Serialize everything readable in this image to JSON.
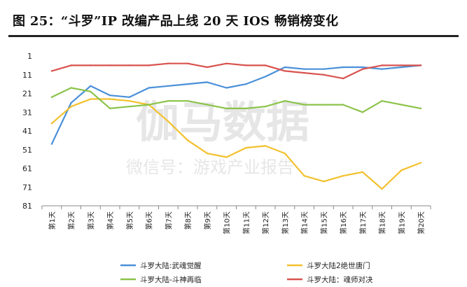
{
  "title": "图 25：“斗罗”IP 改编产品上线 20 天 IOS 畅销榜变化",
  "watermark": {
    "main": "伽马数据",
    "sub": "微信号：游戏产业报告"
  },
  "chart_data": {
    "type": "line",
    "title": "",
    "xlabel": "",
    "ylabel": "",
    "y_inverted": true,
    "ylim": [
      1,
      81
    ],
    "yticks": [
      1,
      11,
      21,
      31,
      41,
      51,
      61,
      71,
      81
    ],
    "grid": false,
    "legend_position": "bottom",
    "categories": [
      "第1天",
      "第2天",
      "第3天",
      "第4天",
      "第5天",
      "第6天",
      "第7天",
      "第8天",
      "第9天",
      "第10天",
      "第11天",
      "第12天",
      "第13天",
      "第14天",
      "第15天",
      "第16天",
      "第17天",
      "第18天",
      "第19天",
      "第20天"
    ],
    "series": [
      {
        "name": "斗罗大陆:武魂觉醒",
        "color": "#4a90d9",
        "values": [
          48,
          26,
          17,
          22,
          23,
          18,
          17,
          16,
          15,
          18,
          16,
          12,
          7,
          8,
          8,
          7,
          7,
          8,
          7,
          6
        ]
      },
      {
        "name": "斗罗大陆2绝世唐门",
        "color": "#f2c12e",
        "values": [
          37,
          28,
          24,
          24,
          25,
          27,
          36,
          46,
          53,
          55,
          50,
          49,
          53,
          65,
          68,
          65,
          63,
          72,
          62,
          58
        ]
      },
      {
        "name": "斗罗大陆-斗神再临",
        "color": "#8bc34a",
        "values": [
          23,
          18,
          20,
          29,
          28,
          27,
          25,
          25,
          27,
          29,
          29,
          28,
          25,
          27,
          27,
          27,
          31,
          25,
          27,
          29
        ]
      },
      {
        "name": "斗罗大陆：魂师对决",
        "color": "#d9534f",
        "values": [
          9,
          6,
          6,
          6,
          6,
          6,
          5,
          5,
          7,
          5,
          6,
          6,
          9,
          10,
          11,
          13,
          8,
          6,
          6,
          6
        ]
      }
    ]
  }
}
